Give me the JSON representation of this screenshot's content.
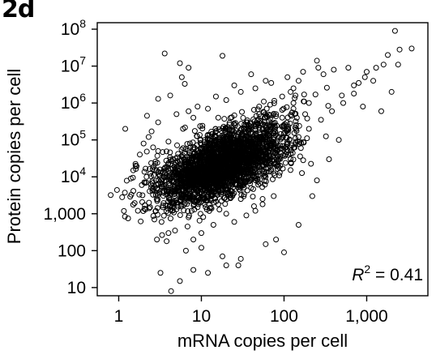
{
  "panel_label": "2d",
  "chart_data": {
    "type": "scatter",
    "xlabel": "mRNA copies per cell",
    "ylabel": "Protein copies per cell",
    "x_scale": "log",
    "y_scale": "log",
    "xlim": [
      0.55,
      5500
    ],
    "ylim": [
      6,
      150000000
    ],
    "x_ticks": [
      {
        "value": 1,
        "label": "1"
      },
      {
        "value": 10,
        "label": "10"
      },
      {
        "value": 100,
        "label": "100"
      },
      {
        "value": 1000,
        "label": "1,000"
      }
    ],
    "y_ticks": [
      {
        "value": 10,
        "base": "10",
        "exp": ""
      },
      {
        "value": 100,
        "base": "100",
        "exp": ""
      },
      {
        "value": 1000,
        "base": "1,000",
        "exp": ""
      },
      {
        "value": 10000,
        "base": "10",
        "exp": "4"
      },
      {
        "value": 100000,
        "base": "10",
        "exp": "5"
      },
      {
        "value": 1000000,
        "base": "10",
        "exp": "6"
      },
      {
        "value": 10000000,
        "base": "10",
        "exp": "7"
      },
      {
        "value": 100000000,
        "base": "10",
        "exp": "8"
      }
    ],
    "annotation": {
      "symbol": "R",
      "exp": "2",
      "text": " = 0.41"
    },
    "marker": "open-circle",
    "marker_color": "#000000",
    "grid": false,
    "points": [
      [
        3.6,
        22000000
      ],
      [
        6.3,
        3300000
      ],
      [
        5.8,
        5000000
      ],
      [
        4.2,
        1600000
      ],
      [
        2.5,
        170000
      ],
      [
        5.5,
        12000000
      ],
      [
        7.0,
        9000000
      ],
      [
        3.0,
        1300000
      ],
      [
        18,
        19000000
      ],
      [
        2.2,
        450000
      ],
      [
        1.1,
        2800
      ],
      [
        0.8,
        3200
      ],
      [
        1.3,
        750
      ],
      [
        1.2,
        200000
      ],
      [
        4.3,
        8
      ],
      [
        5.5,
        15
      ],
      [
        3.2,
        25
      ],
      [
        12,
        25
      ],
      [
        28,
        40
      ],
      [
        100,
        90
      ],
      [
        2000,
        2000000
      ],
      [
        2200,
        90000000
      ],
      [
        3500,
        30000000
      ],
      [
        2500,
        28000000
      ],
      [
        1500,
        600000
      ],
      [
        900,
        800000
      ],
      [
        800,
        3500000
      ],
      [
        700,
        1800000
      ],
      [
        1200,
        4000000
      ],
      [
        500,
        1600000
      ],
      [
        1800,
        20000000
      ],
      [
        1600,
        11000000
      ],
      [
        1000,
        7000000
      ],
      [
        600,
        9000000
      ],
      [
        400,
        8000000
      ],
      [
        300,
        6000000
      ],
      [
        250,
        14000000
      ],
      [
        150,
        4000000
      ],
      [
        2400,
        11000000
      ],
      [
        460,
        100000
      ],
      [
        350,
        30000
      ],
      [
        250,
        8000
      ],
      [
        220,
        3000
      ],
      [
        150,
        500
      ],
      [
        80,
        200
      ],
      [
        60,
        150
      ],
      [
        45,
        1200
      ],
      [
        30,
        60
      ],
      [
        20,
        40
      ],
      [
        18,
        70
      ],
      [
        10,
        120
      ],
      [
        8,
        200
      ],
      [
        6.5,
        100
      ],
      [
        4,
        300
      ],
      [
        1.5,
        15000
      ],
      [
        1.8,
        40000
      ],
      [
        2.0,
        80000
      ],
      [
        1.4,
        9000
      ],
      [
        2.7,
        700
      ],
      [
        2.9,
        200
      ],
      [
        3.8,
        180
      ],
      [
        8,
        30
      ],
      [
        40,
        6000000
      ],
      [
        25,
        3000000
      ],
      [
        60,
        4000000
      ],
      [
        15,
        1500000
      ],
      [
        9,
        800000
      ],
      [
        7,
        600000
      ],
      [
        120,
        2000000
      ],
      [
        200,
        1000000
      ],
      [
        80,
        500000
      ],
      [
        50,
        800000
      ],
      [
        35,
        300000
      ],
      [
        22,
        200000
      ],
      [
        16,
        400000
      ],
      [
        11,
        100000
      ],
      [
        6,
        60000
      ],
      [
        4.5,
        30000
      ],
      [
        3.5,
        10000
      ],
      [
        2.6,
        5000
      ],
      [
        5,
        2000
      ],
      [
        7,
        800
      ],
      [
        9,
        1500
      ],
      [
        13,
        3000
      ],
      [
        18,
        6000
      ],
      [
        25,
        12000
      ],
      [
        35,
        20000
      ],
      [
        50,
        40000
      ],
      [
        70,
        70000
      ],
      [
        100,
        150000
      ],
      [
        140,
        250000
      ],
      [
        180,
        500000
      ],
      [
        90,
        20000
      ],
      [
        60,
        10000
      ],
      [
        40,
        5000
      ],
      [
        30,
        2500
      ],
      [
        20,
        1000
      ],
      [
        14,
        500
      ],
      [
        10,
        300
      ],
      [
        120,
        30000
      ],
      [
        160,
        60000
      ],
      [
        75,
        3000
      ],
      [
        55,
        1800
      ],
      [
        35,
        900
      ],
      [
        25,
        600
      ],
      [
        4,
        90000
      ],
      [
        3,
        50000
      ],
      [
        6,
        200000
      ],
      [
        8,
        400000
      ],
      [
        12,
        700000
      ],
      [
        20,
        1200000
      ],
      [
        30,
        2000000
      ],
      [
        45,
        2500000
      ],
      [
        70,
        3500000
      ],
      [
        110,
        5000000
      ],
      [
        170,
        7000000
      ],
      [
        260,
        9000000
      ],
      [
        5,
        500000
      ],
      [
        3,
        300000
      ],
      [
        2.3,
        120000
      ],
      [
        1.6,
        20000
      ],
      [
        1.9,
        6000
      ],
      [
        2.4,
        1500
      ],
      [
        3.3,
        600
      ],
      [
        4.8,
        350
      ],
      [
        6.8,
        450
      ],
      [
        9.5,
        650
      ],
      [
        16,
        1800
      ],
      [
        22,
        3500
      ],
      [
        30,
        8000
      ],
      [
        42,
        14000
      ],
      [
        58,
        25000
      ],
      [
        80,
        45000
      ],
      [
        110,
        80000
      ],
      [
        150,
        120000
      ],
      [
        200,
        200000
      ],
      [
        280,
        350000
      ],
      [
        380,
        600000
      ],
      [
        520,
        1000000
      ],
      [
        700,
        3000000
      ],
      [
        950,
        5000000
      ],
      [
        1300,
        9000000
      ],
      [
        7.5,
        5000
      ],
      [
        10,
        8000
      ],
      [
        14,
        15000
      ],
      [
        19,
        25000
      ],
      [
        26,
        50000
      ],
      [
        36,
        90000
      ],
      [
        50,
        150000
      ],
      [
        68,
        250000
      ],
      [
        95,
        400000
      ],
      [
        130,
        700000
      ],
      [
        175,
        1100000
      ],
      [
        240,
        1700000
      ],
      [
        330,
        2600000
      ],
      [
        5.2,
        12000
      ],
      [
        7.2,
        20000
      ],
      [
        10,
        35000
      ],
      [
        14,
        60000
      ],
      [
        19,
        100000
      ],
      [
        26,
        180000
      ],
      [
        36,
        300000
      ],
      [
        50,
        500000
      ],
      [
        68,
        900000
      ],
      [
        95,
        1500000
      ],
      [
        130,
        2500000
      ],
      [
        3.8,
        4000
      ],
      [
        5.2,
        7000
      ],
      [
        7.2,
        11000
      ],
      [
        10,
        18000
      ],
      [
        14,
        30000
      ],
      [
        19,
        50000
      ],
      [
        26,
        80000
      ],
      [
        36,
        130000
      ],
      [
        50,
        220000
      ],
      [
        68,
        380000
      ],
      [
        95,
        650000
      ],
      [
        130,
        1000000
      ],
      [
        175,
        1700000
      ]
    ]
  }
}
